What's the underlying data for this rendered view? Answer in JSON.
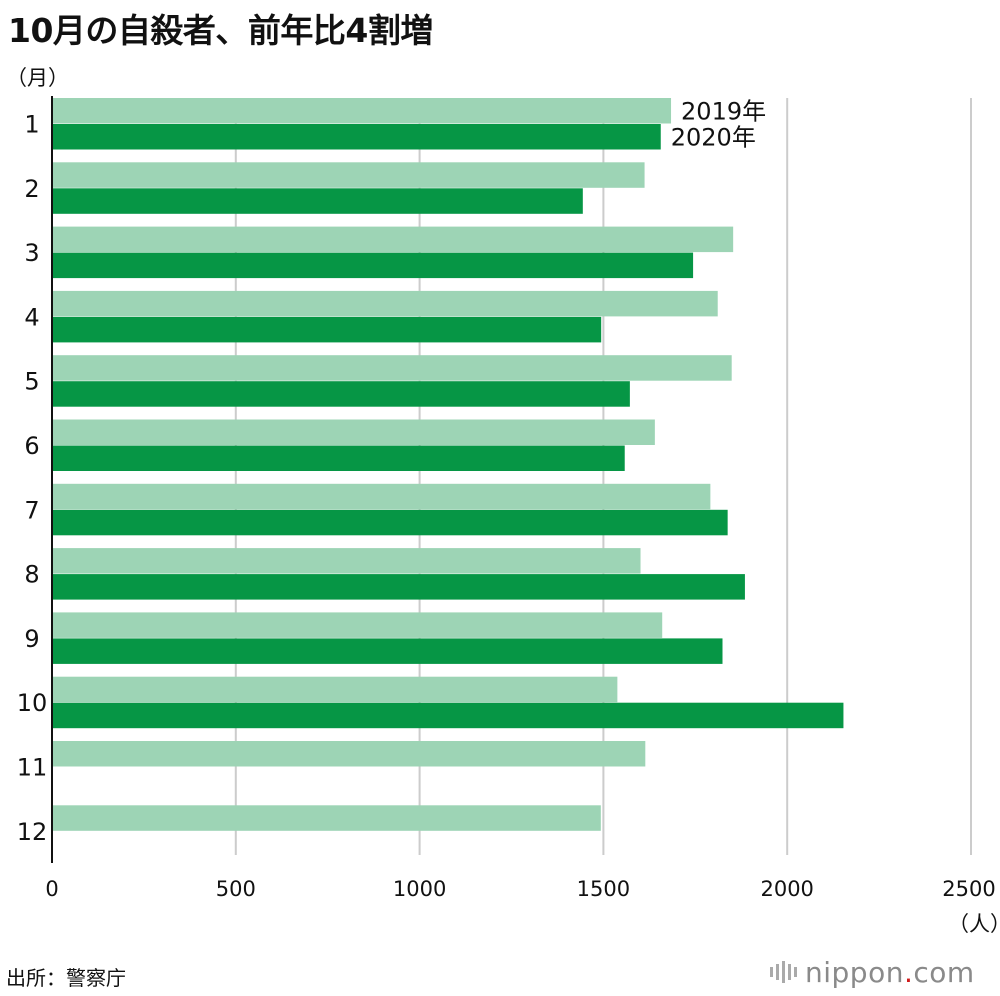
{
  "title": "10月の自殺者、前年比4割増",
  "y_unit": "（月）",
  "x_unit": "（人）",
  "source": "出所：警察庁",
  "logo": {
    "name": "nippon",
    "dot": ".",
    "suffix": "com"
  },
  "colors": {
    "y2019": "#9dd4b5",
    "y2020": "#069645",
    "grid": "#cccccc",
    "axis": "#111111"
  },
  "chart_data": {
    "type": "bar",
    "orientation": "horizontal",
    "title": "10月の自殺者、前年比4割増",
    "ylabel": "（月）",
    "xlabel": "（人）",
    "categories": [
      "1",
      "2",
      "3",
      "4",
      "5",
      "6",
      "7",
      "8",
      "9",
      "10",
      "11",
      "12"
    ],
    "series": [
      {
        "name": "2019年",
        "values": [
          1684,
          1612,
          1853,
          1811,
          1849,
          1640,
          1791,
          1601,
          1660,
          1538,
          1614,
          1493
        ]
      },
      {
        "name": "2020年",
        "values": [
          1656,
          1444,
          1744,
          1494,
          1572,
          1558,
          1838,
          1885,
          1824,
          2153,
          null,
          null
        ]
      }
    ],
    "xlim": [
      0,
      2500
    ],
    "xticks": [
      "0",
      "500",
      "1000",
      "1500",
      "2000",
      "2500"
    ],
    "grid": true,
    "legend": "top, inline next to first bars"
  }
}
